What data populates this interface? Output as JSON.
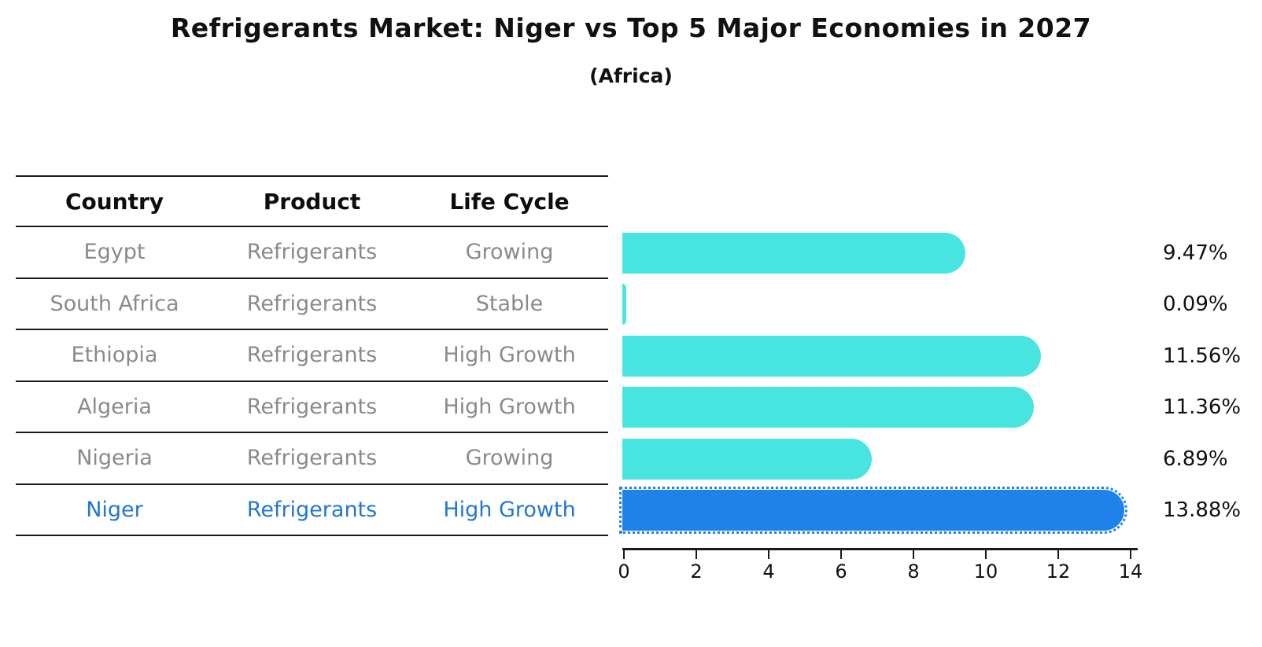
{
  "title": "Refrigerants Market: Niger vs Top 5 Major Economies in 2027",
  "subtitle": "(Africa)",
  "table": {
    "headers": [
      "Country",
      "Product",
      "Life Cycle"
    ],
    "rows": [
      {
        "country": "Egypt",
        "product": "Refrigerants",
        "life_cycle": "Growing",
        "highlight": false
      },
      {
        "country": "South Africa",
        "product": "Refrigerants",
        "life_cycle": "Stable",
        "highlight": false
      },
      {
        "country": "Ethiopia",
        "product": "Refrigerants",
        "life_cycle": "High Growth",
        "highlight": false
      },
      {
        "country": "Algeria",
        "product": "Refrigerants",
        "life_cycle": "High Growth",
        "highlight": false
      },
      {
        "country": "Nigeria",
        "product": "Refrigerants",
        "life_cycle": "Growing",
        "highlight": false
      },
      {
        "country": "Niger",
        "product": "Refrigerants",
        "life_cycle": "High Growth",
        "highlight": true
      }
    ]
  },
  "chart_data": {
    "type": "bar",
    "orientation": "horizontal",
    "title": "Refrigerants Market: Niger vs Top 5 Major Economies in 2027",
    "subtitle": "(Africa)",
    "categories": [
      "Egypt",
      "South Africa",
      "Ethiopia",
      "Algeria",
      "Nigeria",
      "Niger"
    ],
    "values": [
      9.47,
      0.09,
      11.56,
      11.36,
      6.89,
      13.88
    ],
    "value_labels": [
      "9.47%",
      "0.09%",
      "11.56%",
      "11.36%",
      "6.89%",
      "13.88%"
    ],
    "x_ticks": [
      0,
      2,
      4,
      6,
      8,
      10,
      12,
      14
    ],
    "xlim": [
      0,
      14.2
    ],
    "unit": "%",
    "grid": false,
    "legend": "none",
    "highlight_index": 5,
    "bar_color": "#48E5E0",
    "highlight_bar_color": "#1E82EA",
    "value_label_color": "#111111",
    "highlight_text_color": "#2278D0",
    "cell_text_color": "#8A8A8A",
    "axis_color": "#1A1A1A"
  }
}
